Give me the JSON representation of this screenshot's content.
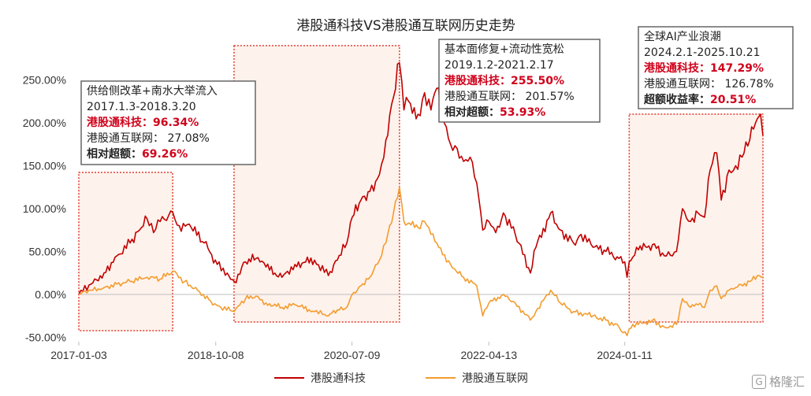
{
  "chart_data": {
    "type": "line",
    "title": "港股通科技VS港股通互联网历史走势",
    "x_ticks": [
      "2017-01-03",
      "2018-10-08",
      "2020-07-09",
      "2022-04-13",
      "2024-01-11"
    ],
    "x_range": [
      "2017-01-03",
      "2025-10-21"
    ],
    "ylim": [
      -50,
      280
    ],
    "y_ticks": [
      -50,
      0,
      50,
      100,
      150,
      200,
      250
    ],
    "y_tick_labels": [
      "-50.00%",
      "0.00%",
      "50.00%",
      "100.00%",
      "150.00%",
      "200.00%",
      "250.00%"
    ],
    "series": [
      {
        "name": "港股通科技",
        "color": "#c00000",
        "points": [
          [
            "2017-01-03",
            0
          ],
          [
            "2017-03-01",
            12
          ],
          [
            "2017-05-01",
            25
          ],
          [
            "2017-07-01",
            45
          ],
          [
            "2017-09-01",
            60
          ],
          [
            "2017-10-15",
            75
          ],
          [
            "2017-11-20",
            88
          ],
          [
            "2017-12-20",
            72
          ],
          [
            "2018-01-20",
            85
          ],
          [
            "2018-03-01",
            92
          ],
          [
            "2018-03-20",
            96
          ],
          [
            "2018-04-20",
            80
          ],
          [
            "2018-06-15",
            78
          ],
          [
            "2018-08-15",
            60
          ],
          [
            "2018-10-15",
            35
          ],
          [
            "2018-12-01",
            25
          ],
          [
            "2019-01-03",
            15
          ],
          [
            "2019-02-25",
            38
          ],
          [
            "2019-04-15",
            42
          ],
          [
            "2019-06-01",
            32
          ],
          [
            "2019-08-15",
            20
          ],
          [
            "2019-10-15",
            35
          ],
          [
            "2020-01-15",
            40
          ],
          [
            "2020-03-20",
            22
          ],
          [
            "2020-05-01",
            40
          ],
          [
            "2020-06-15",
            60
          ],
          [
            "2020-07-10",
            90
          ],
          [
            "2020-08-20",
            110
          ],
          [
            "2020-10-01",
            120
          ],
          [
            "2020-11-15",
            140
          ],
          [
            "2020-12-15",
            180
          ],
          [
            "2021-01-20",
            230
          ],
          [
            "2021-02-17",
            270
          ],
          [
            "2021-03-10",
            215
          ],
          [
            "2021-04-01",
            225
          ],
          [
            "2021-05-15",
            210
          ],
          [
            "2021-06-15",
            235
          ],
          [
            "2021-07-15",
            215
          ],
          [
            "2021-08-10",
            240
          ],
          [
            "2021-09-15",
            200
          ],
          [
            "2021-10-15",
            175
          ],
          [
            "2021-11-15",
            170
          ],
          [
            "2021-12-15",
            155
          ],
          [
            "2022-01-15",
            160
          ],
          [
            "2022-02-15",
            130
          ],
          [
            "2022-03-15",
            75
          ],
          [
            "2022-04-13",
            85
          ],
          [
            "2022-05-15",
            72
          ],
          [
            "2022-06-20",
            95
          ],
          [
            "2022-08-15",
            70
          ],
          [
            "2022-10-25",
            25
          ],
          [
            "2022-11-20",
            55
          ],
          [
            "2023-01-28",
            95
          ],
          [
            "2023-03-15",
            75
          ],
          [
            "2023-05-15",
            60
          ],
          [
            "2023-06-20",
            70
          ],
          [
            "2023-08-15",
            55
          ],
          [
            "2023-10-15",
            50
          ],
          [
            "2023-12-15",
            42
          ],
          [
            "2024-01-11",
            38
          ],
          [
            "2024-01-22",
            20
          ],
          [
            "2024-02-01",
            38
          ],
          [
            "2024-03-15",
            52
          ],
          [
            "2024-05-20",
            58
          ],
          [
            "2024-07-15",
            45
          ],
          [
            "2024-09-10",
            50
          ],
          [
            "2024-10-08",
            100
          ],
          [
            "2024-11-15",
            85
          ],
          [
            "2024-12-20",
            95
          ],
          [
            "2025-01-20",
            90
          ],
          [
            "2025-02-15",
            145
          ],
          [
            "2025-03-18",
            165
          ],
          [
            "2025-04-08",
            110
          ],
          [
            "2025-05-15",
            145
          ],
          [
            "2025-06-15",
            150
          ],
          [
            "2025-07-15",
            160
          ],
          [
            "2025-08-20",
            180
          ],
          [
            "2025-09-25",
            205
          ],
          [
            "2025-10-10",
            210
          ],
          [
            "2025-10-21",
            185
          ]
        ]
      },
      {
        "name": "港股通互联网",
        "color": "#f39c2e",
        "points": [
          [
            "2017-01-03",
            0
          ],
          [
            "2017-03-01",
            5
          ],
          [
            "2017-05-01",
            8
          ],
          [
            "2017-07-01",
            12
          ],
          [
            "2017-09-01",
            15
          ],
          [
            "2017-11-20",
            20
          ],
          [
            "2018-01-20",
            18
          ],
          [
            "2018-03-20",
            27
          ],
          [
            "2018-05-15",
            15
          ],
          [
            "2018-07-15",
            5
          ],
          [
            "2018-09-15",
            -8
          ],
          [
            "2018-11-01",
            -15
          ],
          [
            "2019-01-03",
            -20
          ],
          [
            "2019-02-25",
            -5
          ],
          [
            "2019-04-15",
            -2
          ],
          [
            "2019-06-01",
            -10
          ],
          [
            "2019-08-15",
            -15
          ],
          [
            "2019-10-15",
            -12
          ],
          [
            "2020-01-15",
            -20
          ],
          [
            "2020-03-20",
            -25
          ],
          [
            "2020-05-01",
            -18
          ],
          [
            "2020-06-15",
            -15
          ],
          [
            "2020-07-10",
            0
          ],
          [
            "2020-08-20",
            10
          ],
          [
            "2020-10-01",
            20
          ],
          [
            "2020-11-15",
            40
          ],
          [
            "2020-12-15",
            60
          ],
          [
            "2021-01-20",
            95
          ],
          [
            "2021-02-17",
            125
          ],
          [
            "2021-03-10",
            85
          ],
          [
            "2021-05-15",
            78
          ],
          [
            "2021-06-15",
            85
          ],
          [
            "2021-07-15",
            70
          ],
          [
            "2021-08-20",
            55
          ],
          [
            "2021-10-15",
            35
          ],
          [
            "2021-12-15",
            20
          ],
          [
            "2022-02-15",
            10
          ],
          [
            "2022-03-15",
            -25
          ],
          [
            "2022-04-13",
            -10
          ],
          [
            "2022-06-20",
            0
          ],
          [
            "2022-08-15",
            -10
          ],
          [
            "2022-10-25",
            -30
          ],
          [
            "2022-11-20",
            -20
          ],
          [
            "2023-01-28",
            5
          ],
          [
            "2023-03-15",
            -10
          ],
          [
            "2023-05-15",
            -20
          ],
          [
            "2023-08-15",
            -25
          ],
          [
            "2023-10-15",
            -30
          ],
          [
            "2023-12-15",
            -38
          ],
          [
            "2024-01-22",
            -48
          ],
          [
            "2024-02-01",
            -40
          ],
          [
            "2024-03-15",
            -35
          ],
          [
            "2024-05-20",
            -30
          ],
          [
            "2024-07-15",
            -38
          ],
          [
            "2024-09-10",
            -35
          ],
          [
            "2024-10-08",
            -5
          ],
          [
            "2024-11-15",
            -15
          ],
          [
            "2024-12-20",
            -12
          ],
          [
            "2025-01-20",
            -15
          ],
          [
            "2025-02-15",
            5
          ],
          [
            "2025-03-18",
            10
          ],
          [
            "2025-04-08",
            -5
          ],
          [
            "2025-05-15",
            5
          ],
          [
            "2025-06-15",
            8
          ],
          [
            "2025-08-20",
            15
          ],
          [
            "2025-09-25",
            22
          ],
          [
            "2025-10-21",
            20
          ]
        ]
      }
    ],
    "highlight_periods": [
      {
        "start": "2017-01-03",
        "end": "2018-03-20"
      },
      {
        "start": "2019-01-02",
        "end": "2021-02-17"
      },
      {
        "start": "2024-02-01",
        "end": "2025-10-21"
      }
    ],
    "annotations": [
      {
        "title": "供给侧改革+南水大举流入",
        "period": "2017.1.3-2018.3.20",
        "line1_label": "港股通科技：",
        "line1_value": "96.34%",
        "line2_label": "港股通互联网：",
        "line2_value": "27.08%",
        "line3_label": "相对超额：",
        "line3_value": "69.26%"
      },
      {
        "title": "基本面修复+流动性宽松",
        "period": "2019.1.2-2021.2.17",
        "line1_label": "港股通科技：",
        "line1_value": "255.50%",
        "line2_label": "港股通互联网：",
        "line2_value": "201.57%",
        "line3_label": "相对超额：",
        "line3_value": "53.93%"
      },
      {
        "title": "全球AI产业浪潮",
        "period": "2024.2.1-2025.10.21",
        "line1_label": "港股通科技：",
        "line1_value": "147.29%",
        "line2_label": "港股通互联网：",
        "line2_value": "126.78%",
        "line3_label": "超额收益率：",
        "line3_value": "20.51%"
      }
    ],
    "legend": [
      {
        "label": "港股通科技",
        "color": "#c00000"
      },
      {
        "label": "港股通互联网",
        "color": "#f39c2e"
      }
    ],
    "legend_position": "bottom"
  },
  "watermark": {
    "icon_glyph": "G",
    "text": "格隆汇"
  }
}
